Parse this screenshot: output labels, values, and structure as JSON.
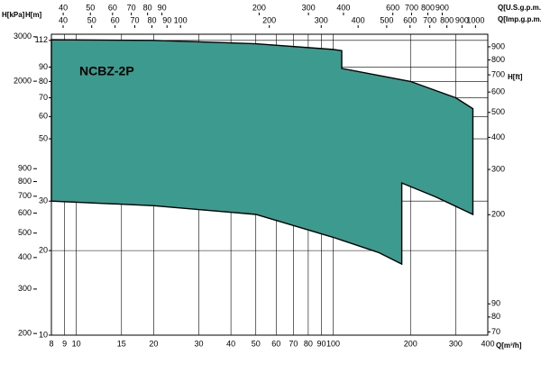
{
  "chart_data": {
    "type": "area",
    "annotation": "NCBZ-2P",
    "x_label": "Q[m³/h]",
    "y_label": "H[m]",
    "y2_label": "H[ft]",
    "y3_label": "H[kPa]",
    "x2_label": "Q[U.S.g.p.m.]",
    "x3_label": "Q[Imp.g.p.m.]",
    "log": true,
    "grid": true,
    "color": "#3d9a8e",
    "xlim": [
      8,
      400
    ],
    "xticks": [
      8,
      9,
      10,
      15,
      20,
      30,
      40,
      50,
      60,
      70,
      80,
      90,
      100,
      200,
      300,
      400
    ],
    "ylim": [
      10,
      117.8
    ],
    "yticks": [
      10,
      20,
      30,
      50,
      60,
      70,
      80,
      90,
      112
    ],
    "y2lim": [
      68,
      1007
    ],
    "y2ticks": [
      70,
      80,
      90,
      200,
      300,
      400,
      500,
      600,
      700,
      800,
      900
    ],
    "y3lim": [
      197,
      3070
    ],
    "y3ticks": [
      200,
      300,
      400,
      500,
      600,
      700,
      800,
      900,
      2000,
      3000
    ],
    "x2lim": [
      36.3,
      1309
    ],
    "x2ticks": [
      40,
      50,
      60,
      70,
      80,
      90,
      200,
      300,
      400,
      600,
      700,
      800,
      900
    ],
    "x3lim": [
      36.5,
      1101
    ],
    "x3ticks": [
      40,
      50,
      60,
      70,
      80,
      90,
      100,
      200,
      300,
      400,
      500,
      600,
      700,
      800,
      900,
      1000
    ],
    "series": [
      {
        "x": [
          8,
          20,
          50,
          100,
          108,
          108,
          200,
          300,
          350
        ],
        "values": [
          112.6,
          112,
          109,
          104,
          103,
          89,
          80,
          70,
          64
        ]
      },
      {
        "x": [
          8,
          20,
          50,
          100,
          150,
          185,
          185,
          250,
          350
        ],
        "values": [
          30,
          28.9,
          26.9,
          22.3,
          19.7,
          17.9,
          34.8,
          31.1,
          26.9
        ]
      }
    ]
  }
}
